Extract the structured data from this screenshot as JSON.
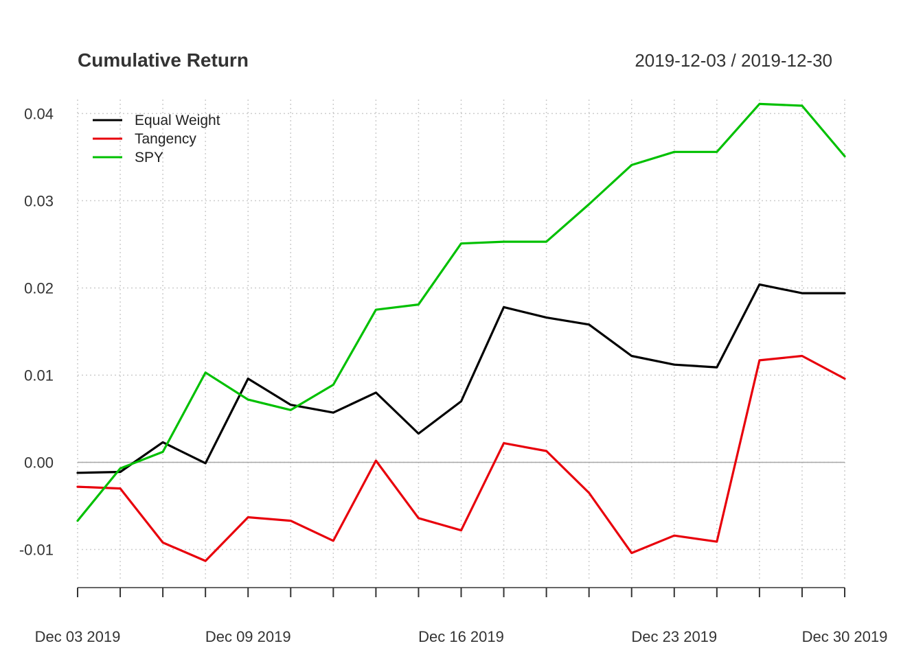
{
  "chart_data": {
    "type": "line",
    "title": "Cumulative Return",
    "date_range": "2019-12-03 / 2019-12-30",
    "xlabel": "",
    "ylabel": "",
    "ylim": [
      -0.0135,
      0.042
    ],
    "y_ticks": [
      -0.01,
      0.0,
      0.01,
      0.02,
      0.03,
      0.04
    ],
    "y_tick_labels": [
      "-0.01",
      "0.00",
      "0.01",
      "0.02",
      "0.03",
      "0.04"
    ],
    "x": [
      "2019-12-03",
      "2019-12-04",
      "2019-12-05",
      "2019-12-06",
      "2019-12-09",
      "2019-12-10",
      "2019-12-11",
      "2019-12-12",
      "2019-12-13",
      "2019-12-16",
      "2019-12-17",
      "2019-12-18",
      "2019-12-19",
      "2019-12-20",
      "2019-12-23",
      "2019-12-24",
      "2019-12-26",
      "2019-12-27",
      "2019-12-30"
    ],
    "x_tick_labels": [
      {
        "date": "2019-12-03",
        "label": "Dec 03 2019"
      },
      {
        "date": "2019-12-09",
        "label": "Dec 09 2019"
      },
      {
        "date": "2019-12-16",
        "label": "Dec 16 2019"
      },
      {
        "date": "2019-12-23",
        "label": "Dec 23 2019"
      },
      {
        "date": "2019-12-30",
        "label": "Dec 30 2019"
      }
    ],
    "grid": true,
    "legend_position": "top-left",
    "series": [
      {
        "name": "Equal Weight",
        "color": "#000000",
        "values": [
          -0.0012,
          -0.0011,
          0.0023,
          -0.0001,
          0.0096,
          0.0066,
          0.0057,
          0.008,
          0.0033,
          0.007,
          0.0178,
          0.0166,
          0.0158,
          0.0122,
          0.0112,
          0.0109,
          0.0204,
          0.0194,
          0.0194
        ]
      },
      {
        "name": "Tangency",
        "color": "#e8000b",
        "values": [
          -0.0028,
          -0.003,
          -0.0092,
          -0.0113,
          -0.0063,
          -0.0067,
          -0.009,
          0.0002,
          -0.0064,
          -0.0078,
          0.0022,
          0.0013,
          -0.0035,
          -0.0104,
          -0.0084,
          -0.0091,
          0.0117,
          0.0122,
          0.0096
        ]
      },
      {
        "name": "SPY",
        "color": "#00c000",
        "values": [
          -0.0067,
          -0.0007,
          0.0012,
          0.0103,
          0.0072,
          0.006,
          0.0089,
          0.0175,
          0.0181,
          0.0251,
          0.0253,
          0.0253,
          0.0296,
          0.0341,
          0.0356,
          0.0356,
          0.0411,
          0.0409,
          0.0351
        ]
      }
    ]
  }
}
